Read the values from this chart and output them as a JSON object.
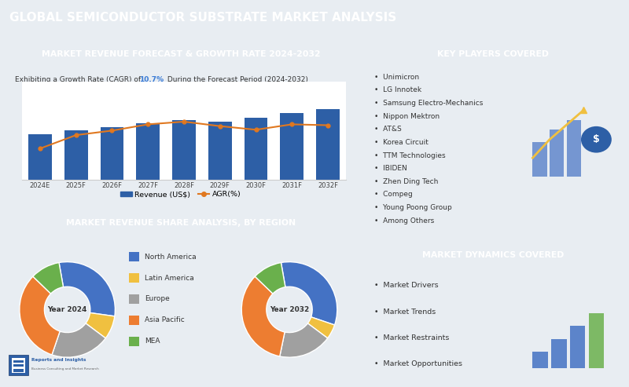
{
  "title": "GLOBAL SEMICONDUCTOR SUBSTRATE MARKET ANALYSIS",
  "title_bg": "#2e3f54",
  "title_color": "#ffffff",
  "bar_section_title": "MARKET REVENUE FORECAST & GROWTH RATE 2024-2032",
  "bar_subtitle_pre": "Exhibiting a Growth Rate (CAGR) of ",
  "cagr_value": "10.7%",
  "bar_subtitle_post": " During the Forecast Period (2024-2032)",
  "years": [
    "2024E",
    "2025F",
    "2026F",
    "2027F",
    "2028F",
    "2029F",
    "2030F",
    "2031F",
    "2032F"
  ],
  "revenue": [
    2.8,
    3.0,
    3.2,
    3.45,
    3.65,
    3.55,
    3.8,
    4.05,
    4.3
  ],
  "agr": [
    8.5,
    10.0,
    10.5,
    11.2,
    11.5,
    11.0,
    10.6,
    11.2,
    11.1
  ],
  "bar_color": "#2d5fa6",
  "line_color": "#e07820",
  "donut_section_title": "MARKET REVENUE SHARE ANALYSIS, BY REGION",
  "donut_labels": [
    "North America",
    "Latin America",
    "Europe",
    "Asia Pacific",
    "MEA"
  ],
  "donut_colors": [
    "#4472c4",
    "#f0c040",
    "#a0a0a0",
    "#ed7d31",
    "#6ab04c"
  ],
  "donut_sizes_2024": [
    30,
    8,
    20,
    32,
    10
  ],
  "donut_sizes_2032": [
    33,
    5,
    18,
    34,
    10
  ],
  "donut_label_2024": "Year 2024",
  "donut_label_2032": "Year 2032",
  "right_section_title1": "KEY PLAYERS COVERED",
  "key_players": [
    "Unimicron",
    "LG Innotek",
    "Samsung Electro-Mechanics",
    "Nippon Mektron",
    "AT&S",
    "Korea Circuit",
    "TTM Technologies",
    "IBIDEN",
    "Zhen Ding Tech",
    "Compeg",
    "Young Poong Group",
    "Among Others"
  ],
  "right_section_title2": "MARKET DYNAMICS COVERED",
  "market_dynamics": [
    "Market Drivers",
    "Market Trends",
    "Market Restraints",
    "Market Opportunities"
  ],
  "section_header_bg": "#2d5fa6",
  "section_header_color": "#ffffff",
  "panel_bg": "#ffffff",
  "outer_bg": "#e8edf2"
}
